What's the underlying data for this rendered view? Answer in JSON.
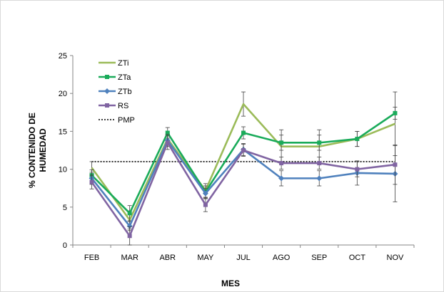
{
  "chart_data": {
    "type": "line",
    "title": "",
    "xlabel": "MES",
    "ylabel": [
      "% CONTENIDO DE",
      "HUMEDAD"
    ],
    "categories": [
      "FEB",
      "MAR",
      "ABR",
      "MAY",
      "JUL",
      "AGO",
      "SEP",
      "OCT",
      "NOV"
    ],
    "ylim": [
      0,
      25
    ],
    "yticks": [
      0,
      5,
      10,
      15,
      20,
      25
    ],
    "grid": false,
    "legend_position": "top-left",
    "series": [
      {
        "name": "ZTi",
        "color": "#9bbb59",
        "marker": "none",
        "values": [
          10.2,
          3.3,
          14.0,
          7.2,
          18.6,
          13.0,
          13.0,
          14.0,
          16.0
        ],
        "errors": [
          0.8,
          1.2,
          0.6,
          0.9,
          1.6,
          2.2,
          2.2,
          1.0,
          4.2
        ]
      },
      {
        "name": "ZTa",
        "color": "#1aab5a",
        "marker": "square",
        "values": [
          9.2,
          4.2,
          14.8,
          7.0,
          14.8,
          13.5,
          13.5,
          14.0,
          17.4
        ],
        "errors": [
          0.7,
          1.0,
          0.7,
          0.8,
          0.8,
          1.0,
          1.0,
          1.0,
          0.8
        ]
      },
      {
        "name": "ZTb",
        "color": "#4f81bd",
        "marker": "diamond",
        "values": [
          8.8,
          2.5,
          13.8,
          6.8,
          12.6,
          8.8,
          8.8,
          9.5,
          9.4
        ],
        "errors": [
          0.8,
          0.6,
          0.8,
          0.7,
          0.8,
          1.0,
          1.0,
          1.6,
          3.7
        ]
      },
      {
        "name": "RS",
        "color": "#8064a2",
        "marker": "square",
        "values": [
          8.3,
          1.2,
          13.5,
          5.3,
          12.5,
          10.8,
          10.8,
          10.0,
          10.6
        ],
        "errors": [
          0.9,
          1.2,
          0.9,
          0.9,
          0.8,
          0.8,
          0.8,
          1.0,
          2.6
        ]
      }
    ],
    "reference_line": {
      "name": "PMP",
      "value": 11.0,
      "style": "dotted",
      "color": "#000000"
    }
  }
}
